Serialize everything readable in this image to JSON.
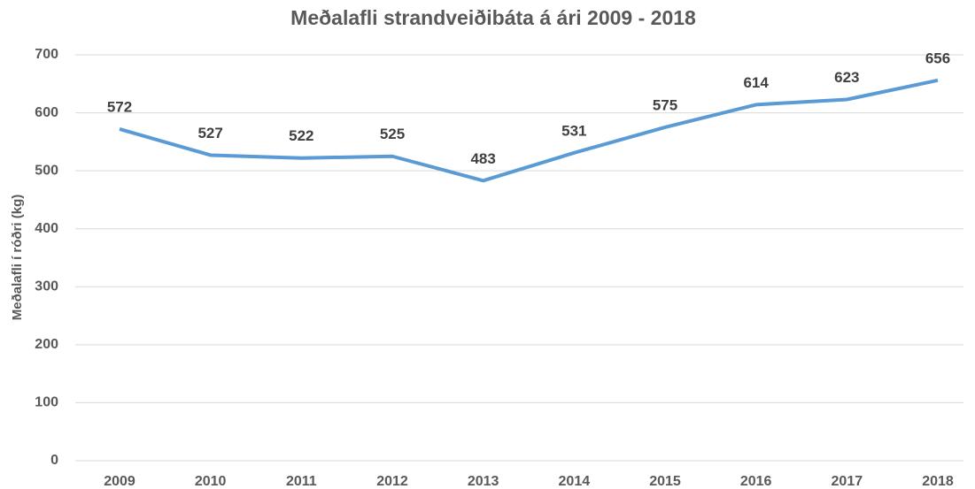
{
  "chart_data": {
    "type": "line",
    "title": "Meðalafli strandveiðibáta á ári 2009 - 2018",
    "y_label": "Meðalafli í róðri (kg)",
    "categories": [
      "2009",
      "2010",
      "2011",
      "2012",
      "2013",
      "2014",
      "2015",
      "2016",
      "2017",
      "2018"
    ],
    "series": [
      {
        "name": "Meðalafli",
        "color": "#5b9bd5",
        "values": [
          572,
          527,
          522,
          525,
          483,
          531,
          575,
          614,
          623,
          656
        ]
      }
    ],
    "ylim": [
      0,
      700
    ],
    "yticks": [
      0,
      100,
      200,
      300,
      400,
      500,
      600,
      700
    ],
    "grid": true
  }
}
